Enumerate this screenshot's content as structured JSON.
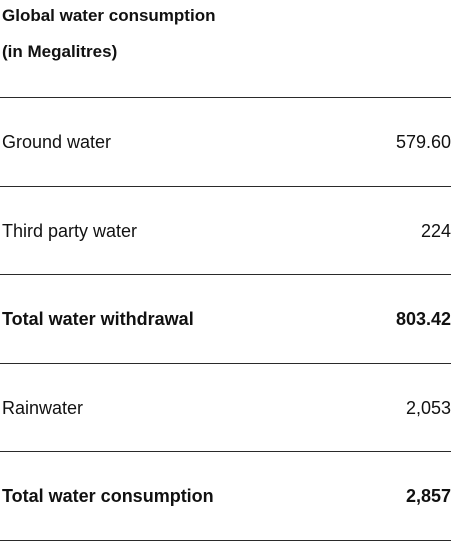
{
  "table": {
    "title_line1": "Global water consumption",
    "title_line2": "(in Megalitres)",
    "rows": [
      {
        "label": "Ground water",
        "value": "579.60",
        "bold": false
      },
      {
        "label": "Third party water",
        "value": "224",
        "bold": false
      },
      {
        "label": "Total water withdrawal",
        "value": "803.42",
        "bold": true
      },
      {
        "label": "Rainwater",
        "value": "2,053",
        "bold": false
      },
      {
        "label": "Total water consumption",
        "value": "2,857",
        "bold": true
      }
    ]
  }
}
